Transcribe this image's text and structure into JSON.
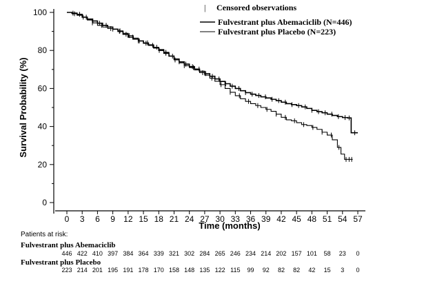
{
  "chart_data": {
    "type": "line",
    "ylabel": "Survival Probability (%)",
    "xlabel": "Time (months)",
    "xlim": [
      0,
      57
    ],
    "ylim": [
      0,
      100
    ],
    "x_ticks": [
      "0",
      "3",
      "6",
      "9",
      "12",
      "15",
      "18",
      "21",
      "24",
      "27",
      "30",
      "33",
      "36",
      "39",
      "42",
      "45",
      "48",
      "51",
      "54",
      "57"
    ],
    "y_ticks": [
      "0",
      "20",
      "40",
      "60",
      "80",
      "100"
    ],
    "legend": {
      "position": "top-right",
      "censor_mark": "|",
      "censor_label": "Censored observations",
      "entries": [
        "Fulvestrant plus Abemaciclib (N=446)",
        "Fulvestrant plus Placebo (N=223)"
      ]
    },
    "series": [
      {
        "name": "Fulvestrant plus Abemaciclib (N=446)",
        "points": [
          [
            0,
            100
          ],
          [
            1,
            99.6
          ],
          [
            2,
            99
          ],
          [
            3,
            97.5
          ],
          [
            4,
            96.5
          ],
          [
            5,
            95.5
          ],
          [
            6,
            94.3
          ],
          [
            7,
            93.2
          ],
          [
            8,
            92.3
          ],
          [
            9,
            91.2
          ],
          [
            10,
            90
          ],
          [
            11,
            88.5
          ],
          [
            12,
            87
          ],
          [
            13,
            86
          ],
          [
            14,
            85
          ],
          [
            15,
            83.8
          ],
          [
            16,
            82.7
          ],
          [
            17,
            81.3
          ],
          [
            18,
            80
          ],
          [
            19,
            78.5
          ],
          [
            20,
            77
          ],
          [
            21,
            75.5
          ],
          [
            22,
            74
          ],
          [
            23,
            72.8
          ],
          [
            24,
            71.5
          ],
          [
            25,
            70.2
          ],
          [
            26,
            69
          ],
          [
            27,
            67.8
          ],
          [
            28,
            66.4
          ],
          [
            29,
            65
          ],
          [
            30,
            63.7
          ],
          [
            31,
            62.5
          ],
          [
            32,
            61.2
          ],
          [
            33,
            60
          ],
          [
            34,
            58.8
          ],
          [
            35,
            57.8
          ],
          [
            36,
            57
          ],
          [
            37,
            56.3
          ],
          [
            38,
            55.6
          ],
          [
            39,
            55
          ],
          [
            40,
            54.3
          ],
          [
            41,
            53.6
          ],
          [
            42,
            52.8
          ],
          [
            43,
            52
          ],
          [
            44,
            51.5
          ],
          [
            45,
            51
          ],
          [
            46,
            50.3
          ],
          [
            47,
            49.5
          ],
          [
            48,
            48.5
          ],
          [
            49,
            47.8
          ],
          [
            50,
            47.2
          ],
          [
            51,
            46.5
          ],
          [
            52,
            45.8
          ],
          [
            53,
            45.2
          ],
          [
            54,
            44.7
          ],
          [
            55,
            44.5
          ],
          [
            55.7,
            44.5
          ],
          [
            55.7,
            36.7
          ],
          [
            57,
            36.7
          ]
        ],
        "censor_x": [
          1.2,
          2.5,
          3.8,
          5.1,
          6.4,
          7.7,
          9,
          10.3,
          11.6,
          12.9,
          14.2,
          15.5,
          16.8,
          18.1,
          19.4,
          20.7,
          22,
          23.3,
          24.6,
          25.9,
          27.2,
          28.5,
          29.8,
          31.1,
          32.4,
          33.7,
          35,
          36.3,
          37.6,
          38.9,
          40.2,
          41.5,
          42.8,
          44.1,
          45.4,
          46.7,
          48,
          49.3,
          50.6,
          51.9,
          53.2,
          54.5,
          55.3,
          56.4
        ]
      },
      {
        "name": "Fulvestrant plus Placebo (N=223)",
        "points": [
          [
            0,
            100
          ],
          [
            1,
            99.3
          ],
          [
            2,
            98.5
          ],
          [
            3,
            97.5
          ],
          [
            4,
            96
          ],
          [
            5,
            94.5
          ],
          [
            6,
            93.2
          ],
          [
            7,
            92.3
          ],
          [
            8,
            91.5
          ],
          [
            9,
            91.2
          ],
          [
            10,
            90.3
          ],
          [
            11,
            89
          ],
          [
            12,
            87.8
          ],
          [
            13,
            86.5
          ],
          [
            14,
            85
          ],
          [
            15,
            84
          ],
          [
            16,
            83
          ],
          [
            17,
            81.7
          ],
          [
            18,
            80.5
          ],
          [
            19,
            79
          ],
          [
            20,
            77
          ],
          [
            21,
            75
          ],
          [
            22,
            73.5
          ],
          [
            23,
            72
          ],
          [
            24,
            71
          ],
          [
            25,
            69.7
          ],
          [
            26,
            68.3
          ],
          [
            27,
            67
          ],
          [
            28,
            65.4
          ],
          [
            29,
            63.8
          ],
          [
            30,
            62
          ],
          [
            31,
            60
          ],
          [
            32,
            58
          ],
          [
            33,
            56.2
          ],
          [
            34,
            54.6
          ],
          [
            35,
            53.2
          ],
          [
            36,
            52
          ],
          [
            37,
            51
          ],
          [
            38,
            50
          ],
          [
            39,
            49
          ],
          [
            40,
            48
          ],
          [
            41,
            46.5
          ],
          [
            42,
            44.8
          ],
          [
            43,
            43.5
          ],
          [
            44,
            43
          ],
          [
            45,
            42
          ],
          [
            46,
            41
          ],
          [
            47,
            40.5
          ],
          [
            48,
            39.5
          ],
          [
            49,
            38.5
          ],
          [
            50,
            37
          ],
          [
            51,
            35.5
          ],
          [
            52,
            33
          ],
          [
            53,
            29
          ],
          [
            53.7,
            25.5
          ],
          [
            54,
            25.5
          ],
          [
            54.4,
            22.7
          ],
          [
            56,
            22.7
          ]
        ],
        "censor_x": [
          1.5,
          3.2,
          5,
          6.8,
          8.6,
          10.4,
          12.2,
          14,
          15.8,
          17.6,
          19.4,
          21.2,
          23,
          24.8,
          26.6,
          28.4,
          30.2,
          32,
          33.8,
          35.6,
          37.4,
          39.2,
          41,
          42.8,
          44.6,
          46.4,
          48.2,
          50,
          51.8,
          53.3,
          54.7,
          55.3,
          55.8
        ]
      }
    ],
    "risk_table": {
      "title": "Patients at risk:",
      "rows": [
        {
          "label": "Fulvestrant plus Abemaciclib",
          "counts": [
            "446",
            "422",
            "410",
            "397",
            "384",
            "364",
            "339",
            "321",
            "302",
            "284",
            "265",
            "246",
            "234",
            "214",
            "202",
            "157",
            "101",
            "58",
            "23",
            "0"
          ]
        },
        {
          "label": "Fulvestrant plus Placebo",
          "counts": [
            "223",
            "214",
            "201",
            "195",
            "191",
            "178",
            "170",
            "158",
            "148",
            "135",
            "122",
            "115",
            "99",
            "92",
            "82",
            "82",
            "42",
            "15",
            "3",
            "0"
          ]
        }
      ]
    }
  }
}
